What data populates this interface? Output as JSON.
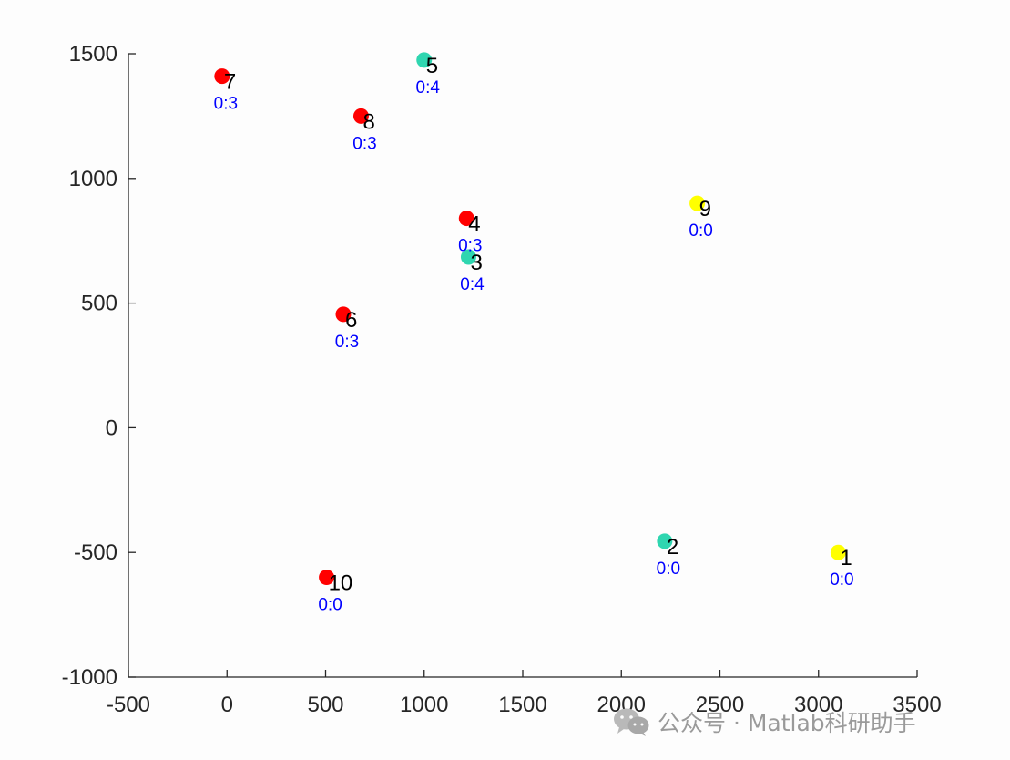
{
  "chart_data": {
    "type": "scatter",
    "title": "",
    "xlabel": "",
    "ylabel": "",
    "xlim": [
      -500,
      3500
    ],
    "ylim": [
      -1000,
      1500
    ],
    "xticks": [
      -500,
      0,
      500,
      1000,
      1500,
      2000,
      2500,
      3000,
      3500
    ],
    "xtick_labels": [
      "-500",
      "0",
      "500",
      "1000",
      "1500",
      "2000",
      "2500",
      "3000",
      "3500"
    ],
    "yticks": [
      -1000,
      -500,
      0,
      500,
      1000,
      1500
    ],
    "ytick_labels": [
      "-1000",
      "-500",
      "0",
      "500",
      "1000",
      "1500"
    ],
    "grid": false,
    "points": [
      {
        "id": "1",
        "x": 3100,
        "y": -500,
        "color": "#ffff00",
        "note": "0:0"
      },
      {
        "id": "2",
        "x": 2220,
        "y": -455,
        "color": "#2fd6b0",
        "note": "0:0"
      },
      {
        "id": "3",
        "x": 1225,
        "y": 685,
        "color": "#2fd6b0",
        "note": "0:4"
      },
      {
        "id": "4",
        "x": 1215,
        "y": 840,
        "color": "#ff0000",
        "note": "0:3"
      },
      {
        "id": "5",
        "x": 1000,
        "y": 1475,
        "color": "#2fd6b0",
        "note": "0:4"
      },
      {
        "id": "6",
        "x": 590,
        "y": 455,
        "color": "#ff0000",
        "note": "0:3"
      },
      {
        "id": "7",
        "x": -25,
        "y": 1410,
        "color": "#ff0000",
        "note": "0:3"
      },
      {
        "id": "8",
        "x": 680,
        "y": 1250,
        "color": "#ff0000",
        "note": "0:3"
      },
      {
        "id": "9",
        "x": 2385,
        "y": 900,
        "color": "#ffff00",
        "note": "0:0"
      },
      {
        "id": "10",
        "x": 505,
        "y": -600,
        "color": "#ff0000",
        "note": "0:0"
      }
    ]
  },
  "watermark": {
    "text": "公众号 · Matlab科研助手",
    "icon": "wechat-icon"
  }
}
